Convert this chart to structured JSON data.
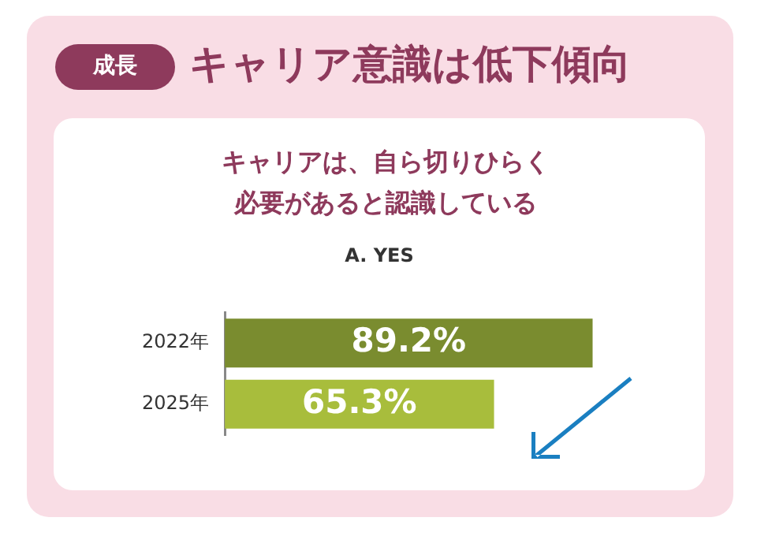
{
  "chart_data": {
    "type": "bar",
    "orientation": "horizontal",
    "title": "キャリア意識は低下傾向",
    "subtitle": "キャリアは、自ら切りひらく必要があると認識している",
    "annotations": [
      "成長",
      "A. YES"
    ],
    "categories": [
      "2022年",
      "2025年"
    ],
    "values": [
      89.2,
      65.3
    ],
    "colors": [
      "#7a8c2f",
      "#a8bd3c"
    ],
    "value_labels": [
      "89.2%",
      "65.3%"
    ],
    "tick_labels": "y"
  }
}
